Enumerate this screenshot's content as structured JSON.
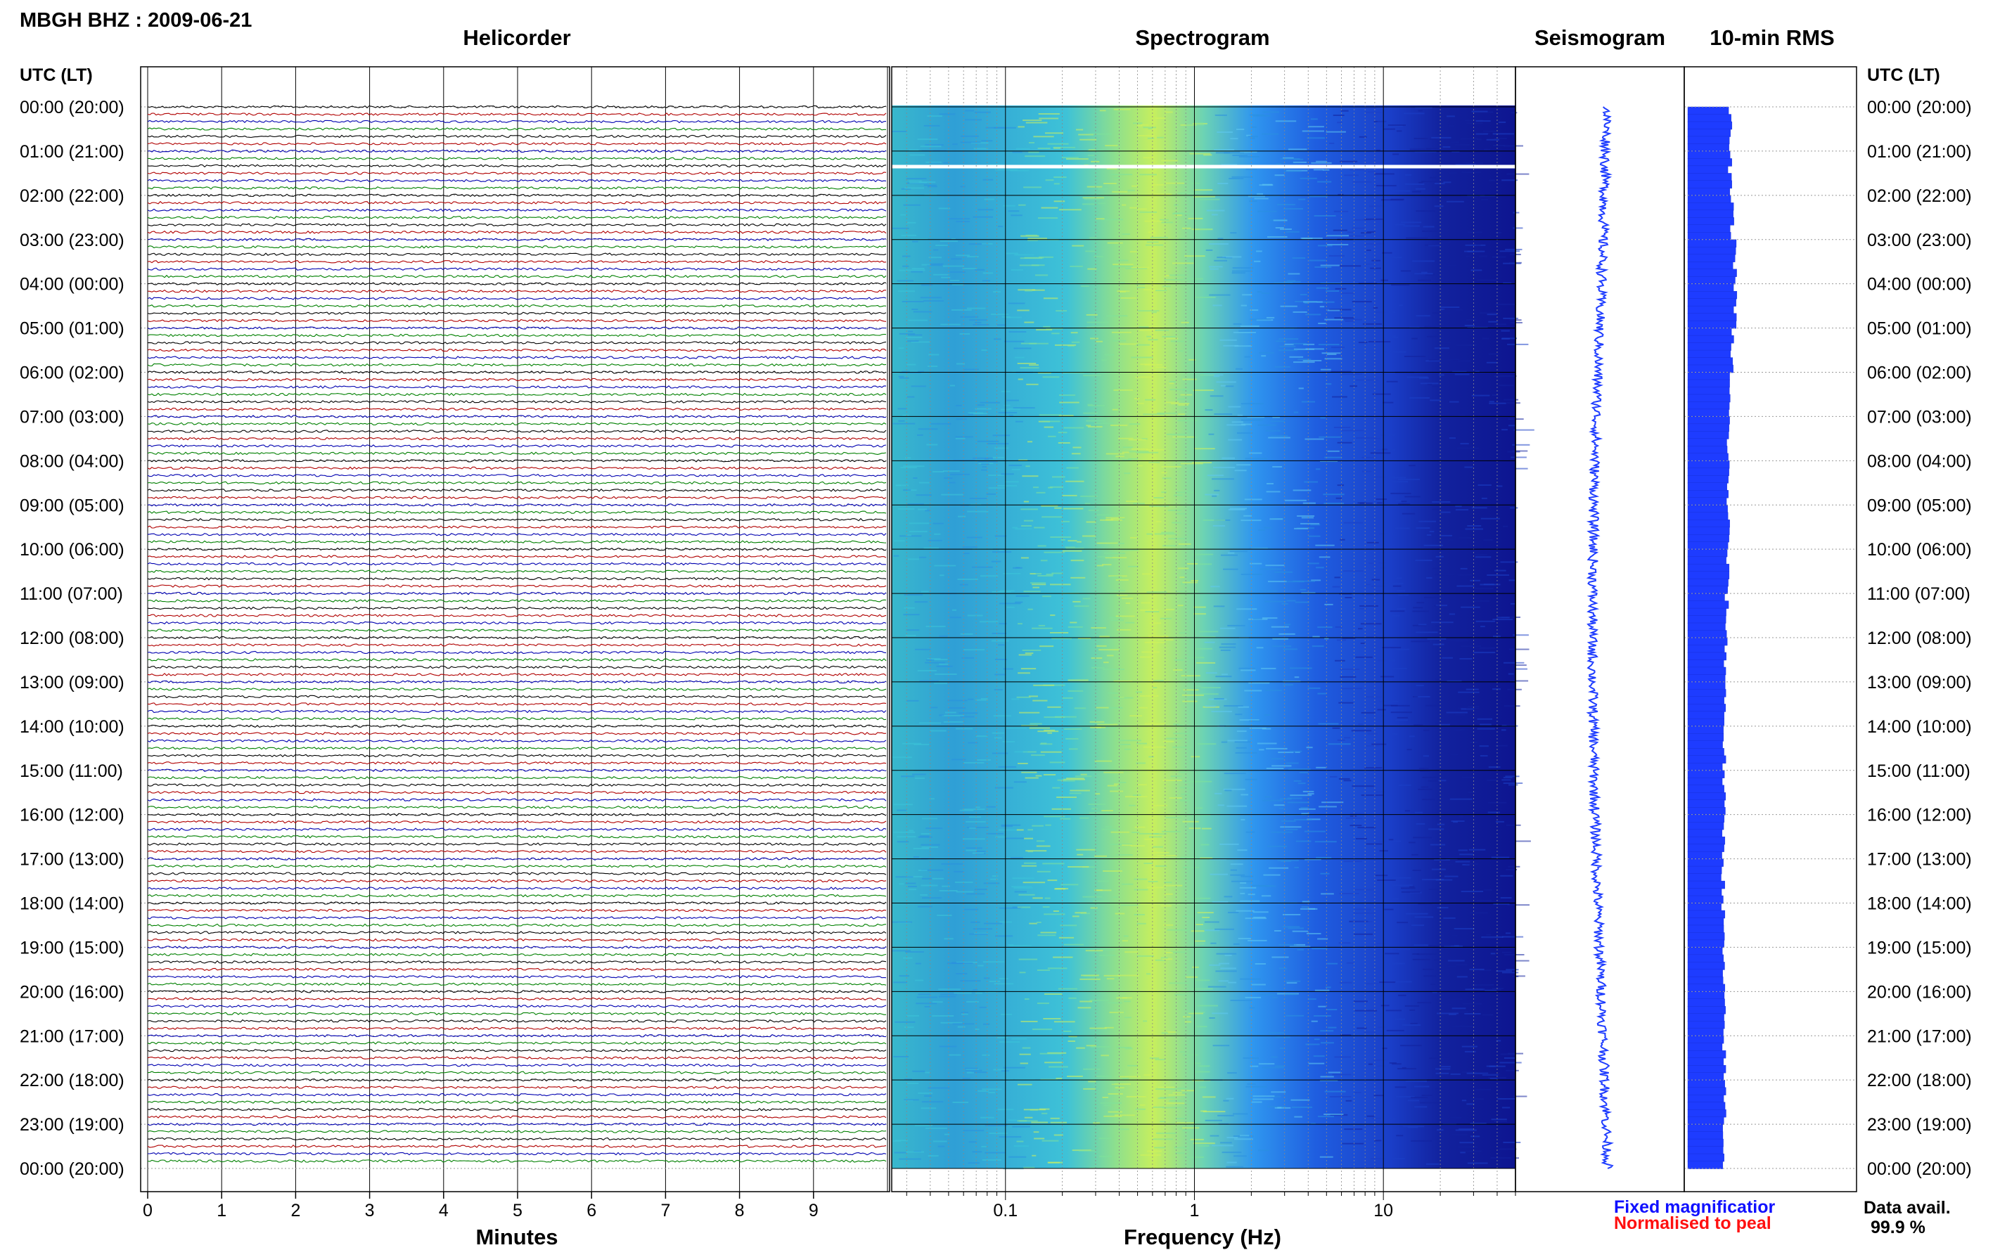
{
  "header": {
    "title": "MBGH BHZ : 2009-06-21",
    "panel_titles": [
      "Helicorder",
      "Spectrogram",
      "Seismogram",
      "10-min RMS"
    ]
  },
  "axes": {
    "left_header": "UTC (LT)",
    "right_header": "UTC (LT)",
    "helicorder_xlabel": "Minutes",
    "spectrogram_xlabel": "Frequency (Hz)"
  },
  "legend": {
    "fixed": "Fixed magnificatior",
    "fixed_color": "#1010ff",
    "normalised": "Normalised to peal",
    "normalised_color": "#ff1010"
  },
  "data_avail": {
    "label": "Data avail.",
    "value": "99.9 %"
  },
  "colors": {
    "trace_cycle": [
      "#000000",
      "#b00000",
      "#0000b0",
      "#008000"
    ],
    "seismogram": "#1e3cff",
    "rms": "#1e3cff",
    "spectrogram_low": "#10169a",
    "spectrogram_high": "#c8f05a"
  },
  "chart_data": [
    {
      "type": "line",
      "title": "Helicorder",
      "xlabel": "Minutes",
      "xlim": [
        0,
        10
      ],
      "x_ticks": [
        "0",
        "1",
        "2",
        "3",
        "4",
        "5",
        "6",
        "7",
        "8",
        "9"
      ],
      "rows_per_hour": 6,
      "hours": 24,
      "y_ticks": [
        "00:00 (20:00)",
        "01:00 (21:00)",
        "02:00 (22:00)",
        "03:00 (23:00)",
        "04:00 (00:00)",
        "05:00 (01:00)",
        "06:00 (02:00)",
        "07:00 (03:00)",
        "08:00 (04:00)",
        "09:00 (05:00)",
        "10:00 (06:00)",
        "11:00 (07:00)",
        "12:00 (08:00)",
        "13:00 (09:00)",
        "14:00 (10:00)",
        "15:00 (11:00)",
        "16:00 (12:00)",
        "17:00 (13:00)",
        "18:00 (14:00)",
        "19:00 (15:00)",
        "20:00 (16:00)",
        "21:00 (17:00)",
        "22:00 (18:00)",
        "23:00 (19:00)",
        "00:00 (20:00)"
      ]
    },
    {
      "type": "heatmap",
      "title": "Spectrogram",
      "xlabel": "Frequency (Hz)",
      "x_scale": "log",
      "xlim": [
        0.025,
        50
      ],
      "x_ticks": [
        "0.1",
        "1",
        "10"
      ],
      "peak_band_hz": [
        0.2,
        0.6
      ],
      "gap_hour": 1.35
    },
    {
      "type": "line",
      "title": "Seismogram",
      "drift": [
        0.0,
        -0.25,
        -0.6,
        -0.85,
        -0.95,
        -0.85,
        -0.6,
        -0.25,
        0.05
      ]
    },
    {
      "type": "bar",
      "title": "10-min RMS",
      "orientation": "horizontal",
      "hourly_level": [
        1.0,
        1.0,
        1.05,
        1.12,
        1.12,
        1.05,
        0.98,
        0.96,
        0.95,
        0.96,
        0.94,
        0.92,
        0.9,
        0.88,
        0.86,
        0.85,
        0.85,
        0.84,
        0.84,
        0.84,
        0.85,
        0.86,
        0.88,
        0.86
      ]
    }
  ]
}
